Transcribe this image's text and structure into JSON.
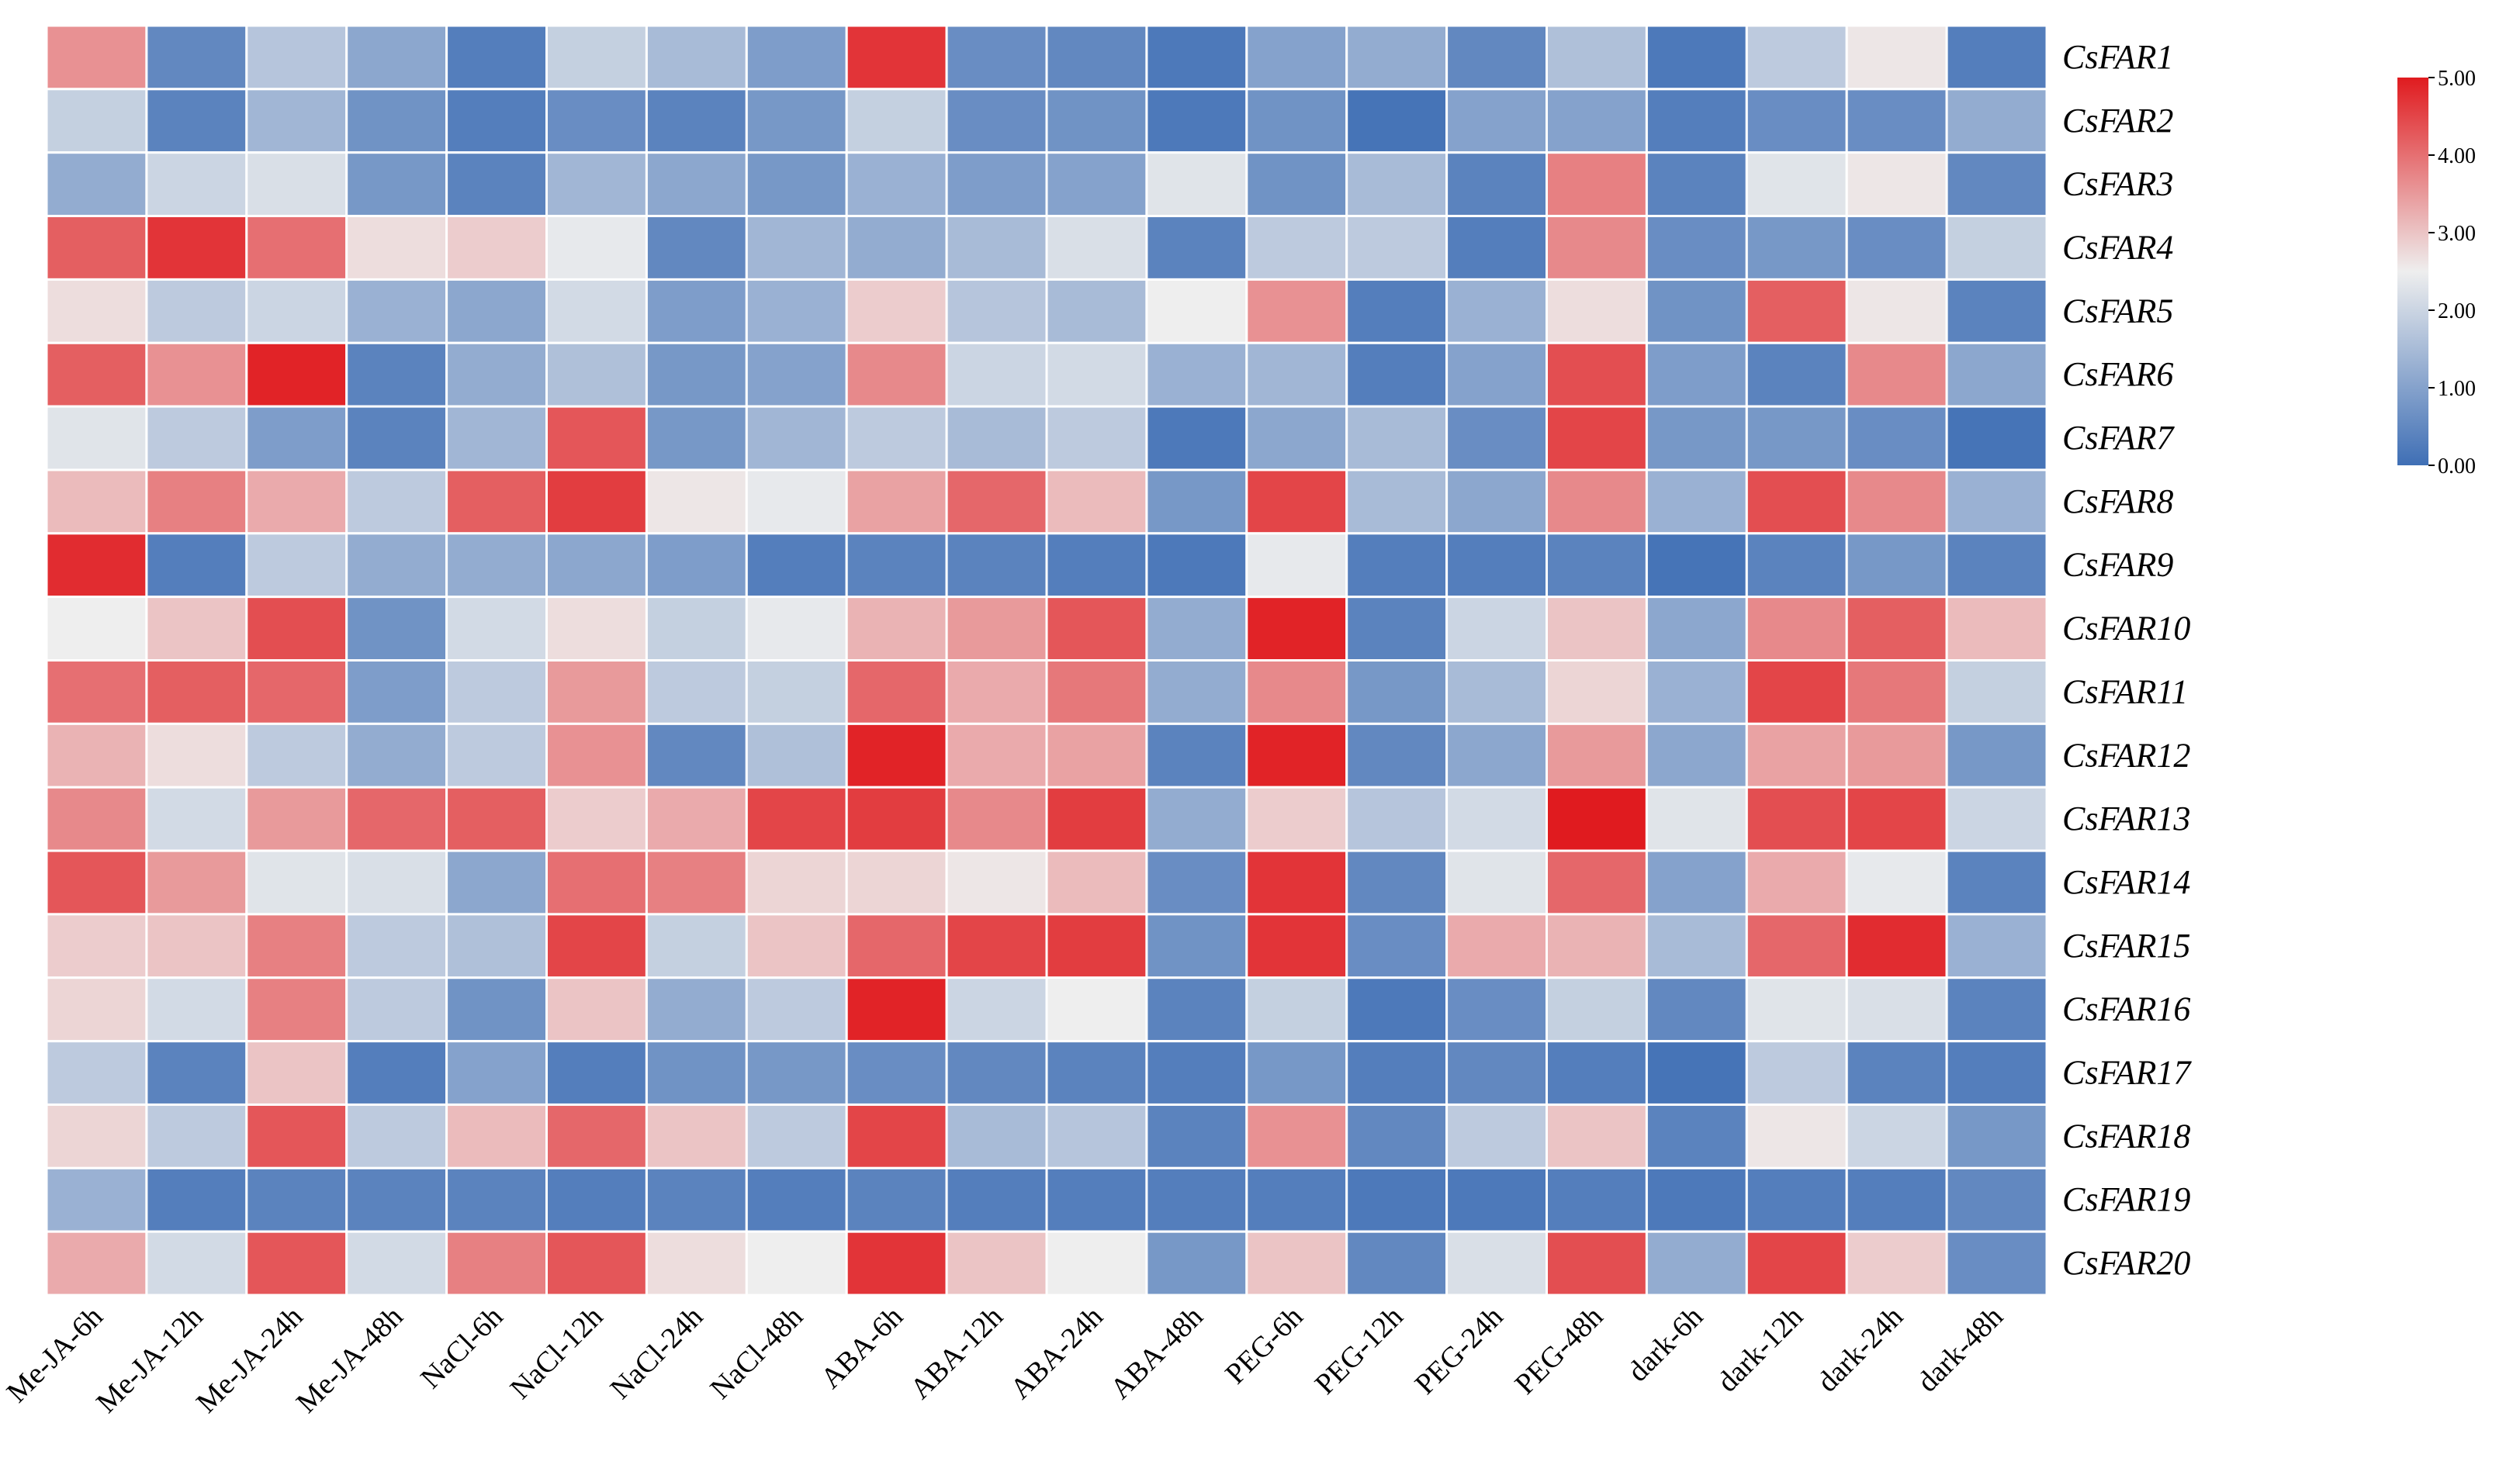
{
  "chart_data": {
    "type": "heatmap",
    "title": "",
    "xlabel": "",
    "ylabel": "",
    "x_categories": [
      "Me-JA-6h",
      "Me-JA-12h",
      "Me-JA-24h",
      "Me-JA-48h",
      "NaCl-6h",
      "NaCl-12h",
      "NaCl-24h",
      "NaCl-48h",
      "ABA-6h",
      "ABA-12h",
      "ABA-24h",
      "ABA-48h",
      "PEG-6h",
      "PEG-12h",
      "PEG-24h",
      "PEG-48h",
      "dark-6h",
      "dark-12h",
      "dark-24h",
      "dark-48h"
    ],
    "y_categories": [
      "CsFAR1",
      "CsFAR2",
      "CsFAR3",
      "CsFAR4",
      "CsFAR5",
      "CsFAR6",
      "CsFAR7",
      "CsFAR8",
      "CsFAR9",
      "CsFAR10",
      "CsFAR11",
      "CsFAR12",
      "CsFAR13",
      "CsFAR14",
      "CsFAR15",
      "CsFAR16",
      "CsFAR17",
      "CsFAR18",
      "CsFAR19",
      "CsFAR20"
    ],
    "values": [
      [
        3.6,
        0.5,
        1.7,
        1.1,
        0.3,
        1.9,
        1.5,
        0.9,
        4.7,
        0.6,
        0.5,
        0.2,
        1.0,
        1.2,
        0.5,
        1.6,
        0.2,
        1.8,
        2.6,
        0.3
      ],
      [
        1.9,
        0.4,
        1.4,
        0.7,
        0.3,
        0.6,
        0.4,
        0.8,
        1.9,
        0.6,
        0.7,
        0.2,
        0.7,
        0.1,
        1.0,
        1.0,
        0.3,
        0.6,
        0.6,
        1.2
      ],
      [
        1.2,
        2.0,
        2.2,
        0.8,
        0.4,
        1.4,
        1.1,
        0.8,
        1.3,
        0.9,
        1.0,
        2.3,
        0.7,
        1.5,
        0.4,
        3.8,
        0.4,
        2.3,
        2.6,
        0.5
      ],
      [
        4.2,
        4.7,
        4.0,
        2.7,
        2.9,
        2.4,
        0.5,
        1.4,
        1.2,
        1.5,
        2.2,
        0.4,
        1.8,
        1.8,
        0.3,
        3.7,
        0.6,
        0.8,
        0.6,
        1.9
      ],
      [
        2.7,
        1.8,
        2.0,
        1.3,
        1.1,
        2.1,
        0.9,
        1.3,
        2.9,
        1.7,
        1.5,
        2.5,
        3.6,
        0.3,
        1.3,
        2.7,
        0.7,
        4.2,
        2.6,
        0.4
      ],
      [
        4.2,
        3.6,
        4.9,
        0.4,
        1.2,
        1.6,
        0.8,
        1.0,
        3.7,
        2.0,
        2.1,
        1.3,
        1.4,
        0.3,
        1.0,
        4.4,
        0.9,
        0.4,
        3.7,
        1.1
      ],
      [
        2.3,
        1.8,
        0.9,
        0.4,
        1.4,
        4.3,
        0.8,
        1.4,
        1.8,
        1.5,
        1.8,
        0.2,
        1.1,
        1.5,
        0.6,
        4.5,
        0.8,
        0.8,
        0.6,
        0.1
      ],
      [
        3.1,
        3.8,
        3.3,
        1.8,
        4.2,
        4.6,
        2.6,
        2.4,
        3.4,
        4.1,
        3.1,
        0.8,
        4.5,
        1.5,
        1.1,
        3.7,
        1.3,
        4.4,
        3.7,
        1.3
      ],
      [
        4.8,
        0.3,
        1.8,
        1.2,
        1.2,
        1.1,
        0.9,
        0.3,
        0.4,
        0.4,
        0.3,
        0.2,
        2.4,
        0.3,
        0.3,
        0.4,
        0.1,
        0.4,
        0.8,
        0.4
      ],
      [
        2.5,
        3.0,
        4.4,
        0.7,
        2.1,
        2.7,
        1.9,
        2.4,
        3.2,
        3.5,
        4.3,
        1.2,
        4.9,
        0.4,
        2.0,
        3.0,
        1.1,
        3.7,
        4.2,
        3.1
      ],
      [
        4.0,
        4.2,
        4.1,
        0.9,
        1.8,
        3.5,
        1.8,
        1.9,
        4.1,
        3.3,
        3.9,
        1.2,
        3.7,
        0.8,
        1.5,
        2.8,
        1.3,
        4.5,
        3.9,
        1.9
      ],
      [
        3.2,
        2.7,
        1.8,
        1.2,
        1.8,
        3.6,
        0.5,
        1.6,
        4.9,
        3.3,
        3.4,
        0.4,
        4.9,
        0.5,
        1.1,
        3.5,
        1.1,
        3.4,
        3.5,
        0.8
      ],
      [
        3.7,
        2.1,
        3.5,
        4.1,
        4.2,
        2.9,
        3.3,
        4.5,
        4.6,
        3.7,
        4.6,
        1.2,
        2.9,
        1.7,
        2.1,
        5.0,
        2.3,
        4.4,
        4.5,
        2.0
      ],
      [
        4.3,
        3.5,
        2.3,
        2.2,
        1.1,
        4.0,
        3.8,
        2.8,
        2.8,
        2.6,
        3.1,
        0.6,
        4.7,
        0.5,
        2.3,
        4.1,
        1.0,
        3.3,
        2.4,
        0.4
      ],
      [
        2.9,
        3.0,
        3.8,
        1.8,
        1.6,
        4.5,
        1.9,
        3.0,
        4.1,
        4.5,
        4.6,
        0.7,
        4.7,
        0.6,
        3.3,
        3.2,
        1.5,
        4.1,
        4.8,
        1.3
      ],
      [
        2.8,
        2.1,
        3.8,
        1.8,
        0.7,
        3.0,
        1.2,
        1.8,
        4.9,
        2.0,
        2.5,
        0.4,
        1.9,
        0.2,
        0.6,
        1.9,
        0.5,
        2.3,
        2.2,
        0.4
      ],
      [
        1.8,
        0.4,
        3.0,
        0.3,
        1.0,
        0.3,
        0.7,
        0.8,
        0.6,
        0.5,
        0.4,
        0.3,
        0.8,
        0.3,
        0.5,
        0.3,
        0.1,
        1.8,
        0.4,
        0.3
      ],
      [
        2.8,
        1.8,
        4.3,
        1.8,
        3.1,
        4.1,
        3.0,
        1.8,
        4.5,
        1.5,
        1.7,
        0.4,
        3.6,
        0.5,
        1.8,
        3.0,
        0.4,
        2.6,
        2.0,
        0.8
      ],
      [
        1.3,
        0.3,
        0.4,
        0.4,
        0.4,
        0.3,
        0.4,
        0.3,
        0.4,
        0.3,
        0.3,
        0.3,
        0.3,
        0.2,
        0.2,
        0.3,
        0.2,
        0.3,
        0.3,
        0.5
      ],
      [
        3.3,
        2.1,
        4.3,
        2.1,
        3.8,
        4.3,
        2.7,
        2.5,
        4.7,
        3.0,
        2.5,
        0.8,
        3.0,
        0.5,
        2.2,
        4.4,
        1.2,
        4.5,
        2.9,
        0.6
      ]
    ],
    "colorbar": {
      "min": 0,
      "max": 5,
      "tick_labels": [
        "5.00",
        "4.00",
        "3.00",
        "2.00",
        "1.00",
        "0.00"
      ],
      "colors": {
        "low": "#3f6fb5",
        "mid": "#eeeeee",
        "high": "#e01b1f"
      }
    }
  }
}
